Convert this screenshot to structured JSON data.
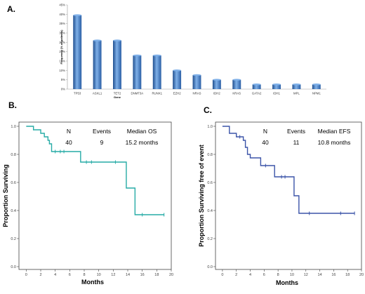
{
  "figure": {
    "panel_a_label": "A.",
    "panel_b_label": "B.",
    "panel_c_label": "C."
  },
  "chart_data": [
    {
      "type": "bar",
      "panel": "A.",
      "ylabel": "Frequency (% of patients)",
      "xlabel": "Gene",
      "ylim": [
        0,
        45
      ],
      "yticks": [
        "0%",
        "5%",
        "10%",
        "15%",
        "20%",
        "25%",
        "30%",
        "35%",
        "40%",
        "45%"
      ],
      "categories": [
        "TP53",
        "ASXL1",
        "TET2",
        "DNMT3A",
        "RUNX1",
        "EZH2",
        "NRAS",
        "IDH2",
        "KRAS",
        "GATA2",
        "IDH1",
        "MPL",
        "NPM1"
      ],
      "values": [
        39.5,
        26,
        26,
        18,
        18,
        10,
        7.5,
        5,
        5,
        2.5,
        2.5,
        2.5,
        2.5
      ],
      "colors": {
        "bar": "#3d78c4",
        "bar_light": "#7fb0e8",
        "bar_dark": "#1f4f8f"
      }
    },
    {
      "type": "line",
      "subtype": "kaplan-meier",
      "panel": "B.",
      "xlabel": "Months",
      "ylabel": "Proportion Surviving",
      "xlim": [
        -1,
        20
      ],
      "ylim": [
        -0.02,
        1.03
      ],
      "xticks": [
        0,
        2,
        4,
        6,
        8,
        10,
        12,
        14,
        16,
        18,
        20
      ],
      "xtick_labels": [
        "0",
        "2",
        "4",
        "6",
        "8",
        "10",
        "12",
        "14",
        "16",
        "18",
        "20"
      ],
      "yticks": [
        0,
        0.2,
        0.4,
        0.6,
        0.8,
        1.0
      ],
      "ytick_labels": [
        "0.0",
        "0.2",
        "0.4",
        "0.6",
        "0.8",
        "1.0"
      ],
      "color": "#27aba6",
      "steps": [
        [
          0,
          1.0
        ],
        [
          1.0,
          0.975
        ],
        [
          2.0,
          0.95
        ],
        [
          2.5,
          0.925
        ],
        [
          3.0,
          0.9
        ],
        [
          3.2,
          0.875
        ],
        [
          3.5,
          0.82
        ],
        [
          7.5,
          0.745
        ],
        [
          13.8,
          0.56
        ],
        [
          15.0,
          0.37
        ],
        [
          19.0,
          0.37
        ]
      ],
      "censored": [
        [
          4.0,
          0.82
        ],
        [
          4.7,
          0.82
        ],
        [
          5.2,
          0.82
        ],
        [
          8.3,
          0.745
        ],
        [
          9.0,
          0.745
        ],
        [
          12.3,
          0.745
        ],
        [
          16.0,
          0.37
        ],
        [
          19.0,
          0.37
        ]
      ],
      "stats": {
        "headers": [
          "N",
          "Events",
          "Median OS"
        ],
        "values": [
          "40",
          "9",
          "15.2 months"
        ]
      }
    },
    {
      "type": "line",
      "subtype": "kaplan-meier",
      "panel": "C.",
      "xlabel": "Months",
      "ylabel": "Proportion Surviving free of event",
      "xlim": [
        -1,
        20
      ],
      "ylim": [
        -0.02,
        1.03
      ],
      "xticks": [
        0,
        2,
        4,
        6,
        8,
        10,
        12,
        14,
        16,
        18,
        20
      ],
      "xtick_labels": [
        "0",
        "2",
        "4",
        "6",
        "8",
        "10",
        "12",
        "14",
        "16",
        "18",
        "20"
      ],
      "yticks": [
        0,
        0.2,
        0.4,
        0.6,
        0.8,
        1.0
      ],
      "ytick_labels": [
        "0.0",
        "0.2",
        "0.4",
        "0.6",
        "0.8",
        "1.0"
      ],
      "color": "#3b54a8",
      "steps": [
        [
          0,
          1.0
        ],
        [
          1.0,
          0.95
        ],
        [
          2.0,
          0.925
        ],
        [
          3.0,
          0.9
        ],
        [
          3.3,
          0.85
        ],
        [
          3.6,
          0.8
        ],
        [
          4.0,
          0.775
        ],
        [
          5.5,
          0.72
        ],
        [
          7.5,
          0.64
        ],
        [
          10.3,
          0.505
        ],
        [
          11.0,
          0.38
        ],
        [
          19.0,
          0.38
        ]
      ],
      "censored": [
        [
          2.5,
          0.925
        ],
        [
          6.2,
          0.72
        ],
        [
          8.5,
          0.64
        ],
        [
          9.0,
          0.64
        ],
        [
          12.5,
          0.38
        ],
        [
          17.0,
          0.38
        ],
        [
          19.0,
          0.38
        ]
      ],
      "stats": {
        "headers": [
          "N",
          "Events",
          "Median EFS"
        ],
        "values": [
          "40",
          "11",
          "10.8 months"
        ]
      }
    }
  ]
}
